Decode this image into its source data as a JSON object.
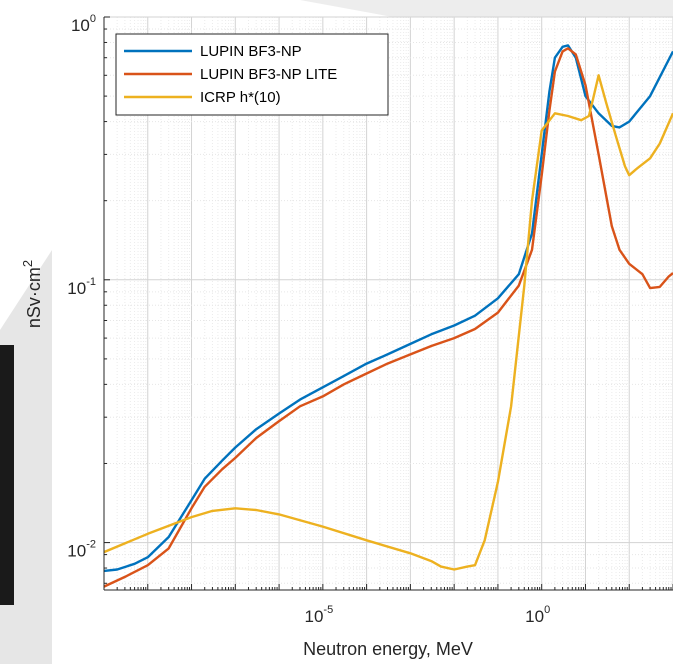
{
  "chart_data": {
    "type": "line",
    "title": "",
    "xlabel": "Neutron energy, MeV",
    "ylabel": {
      "base": "nSv·cm",
      "sup": "2"
    },
    "x_scale": "log",
    "y_scale": "log",
    "xlim": [
      1e-10,
      1000
    ],
    "ylim": [
      0.0066,
      1
    ],
    "grid": true,
    "legend": "top-left",
    "x_ticks": [
      {
        "value": 1e-05,
        "base": "10",
        "exp": "-5"
      },
      {
        "value": 1,
        "base": "10",
        "exp": "0"
      }
    ],
    "y_ticks": [
      {
        "value": 0.01,
        "base": "10",
        "exp": "-2"
      },
      {
        "value": 0.1,
        "base": "10",
        "exp": "-1"
      },
      {
        "value": 1,
        "base": "10",
        "exp": "0"
      }
    ],
    "series": [
      {
        "name": "LUPIN BF3-NP",
        "color": "#0072BD",
        "points": [
          [
            1e-10,
            0.0078
          ],
          [
            2e-10,
            0.0079
          ],
          [
            5e-10,
            0.0083
          ],
          [
            1e-09,
            0.0088
          ],
          [
            3e-09,
            0.0105
          ],
          [
            1e-08,
            0.0145
          ],
          [
            2e-08,
            0.0175
          ],
          [
            5e-08,
            0.0205
          ],
          [
            1e-07,
            0.023
          ],
          [
            3e-07,
            0.027
          ],
          [
            1e-06,
            0.031
          ],
          [
            3e-06,
            0.035
          ],
          [
            1e-05,
            0.039
          ],
          [
            3e-05,
            0.043
          ],
          [
            0.0001,
            0.048
          ],
          [
            0.0003,
            0.052
          ],
          [
            0.001,
            0.057
          ],
          [
            0.003,
            0.062
          ],
          [
            0.01,
            0.067
          ],
          [
            0.03,
            0.073
          ],
          [
            0.1,
            0.085
          ],
          [
            0.3,
            0.105
          ],
          [
            0.6,
            0.15
          ],
          [
            1,
            0.3
          ],
          [
            1.5,
            0.52
          ],
          [
            2,
            0.7
          ],
          [
            3,
            0.77
          ],
          [
            4,
            0.78
          ],
          [
            6,
            0.7
          ],
          [
            10,
            0.5
          ],
          [
            20,
            0.43
          ],
          [
            40,
            0.385
          ],
          [
            60,
            0.38
          ],
          [
            100,
            0.4
          ],
          [
            300,
            0.5
          ],
          [
            1000,
            0.74
          ]
        ]
      },
      {
        "name": "LUPIN BF3-NP LITE",
        "color": "#D95319",
        "points": [
          [
            1e-10,
            0.0068
          ],
          [
            3e-10,
            0.0074
          ],
          [
            1e-09,
            0.0082
          ],
          [
            3e-09,
            0.0095
          ],
          [
            1e-08,
            0.0135
          ],
          [
            2e-08,
            0.0163
          ],
          [
            5e-08,
            0.019
          ],
          [
            1e-07,
            0.021
          ],
          [
            3e-07,
            0.025
          ],
          [
            1e-06,
            0.029
          ],
          [
            3e-06,
            0.033
          ],
          [
            1e-05,
            0.036
          ],
          [
            3e-05,
            0.04
          ],
          [
            0.0001,
            0.044
          ],
          [
            0.0003,
            0.048
          ],
          [
            0.001,
            0.052
          ],
          [
            0.003,
            0.056
          ],
          [
            0.01,
            0.06
          ],
          [
            0.03,
            0.065
          ],
          [
            0.1,
            0.075
          ],
          [
            0.3,
            0.095
          ],
          [
            0.6,
            0.13
          ],
          [
            1,
            0.25
          ],
          [
            1.5,
            0.44
          ],
          [
            2,
            0.62
          ],
          [
            3,
            0.74
          ],
          [
            4,
            0.76
          ],
          [
            6,
            0.72
          ],
          [
            10,
            0.55
          ],
          [
            20,
            0.3
          ],
          [
            40,
            0.16
          ],
          [
            60,
            0.13
          ],
          [
            100,
            0.115
          ],
          [
            200,
            0.105
          ],
          [
            300,
            0.093
          ],
          [
            500,
            0.094
          ],
          [
            800,
            0.103
          ],
          [
            1000,
            0.106
          ]
        ]
      },
      {
        "name": "ICRP h*(10)",
        "color": "#EDB120",
        "points": [
          [
            1e-10,
            0.0092
          ],
          [
            1e-09,
            0.0108
          ],
          [
            1e-08,
            0.0125
          ],
          [
            3e-08,
            0.0132
          ],
          [
            1e-07,
            0.0135
          ],
          [
            3e-07,
            0.0133
          ],
          [
            1e-06,
            0.0128
          ],
          [
            1e-05,
            0.0115
          ],
          [
            0.0001,
            0.0102
          ],
          [
            0.001,
            0.0091
          ],
          [
            0.003,
            0.0085
          ],
          [
            0.005,
            0.0081
          ],
          [
            0.01,
            0.0079
          ],
          [
            0.02,
            0.0081
          ],
          [
            0.03,
            0.0082
          ],
          [
            0.05,
            0.0102
          ],
          [
            0.1,
            0.017
          ],
          [
            0.2,
            0.033
          ],
          [
            0.4,
            0.095
          ],
          [
            0.6,
            0.2
          ],
          [
            1,
            0.37
          ],
          [
            2,
            0.43
          ],
          [
            4,
            0.42
          ],
          [
            8,
            0.405
          ],
          [
            12,
            0.42
          ],
          [
            15,
            0.49
          ],
          [
            20,
            0.6
          ],
          [
            30,
            0.47
          ],
          [
            50,
            0.35
          ],
          [
            80,
            0.27
          ],
          [
            100,
            0.25
          ],
          [
            150,
            0.265
          ],
          [
            300,
            0.29
          ],
          [
            500,
            0.33
          ],
          [
            1000,
            0.43
          ]
        ]
      }
    ]
  }
}
